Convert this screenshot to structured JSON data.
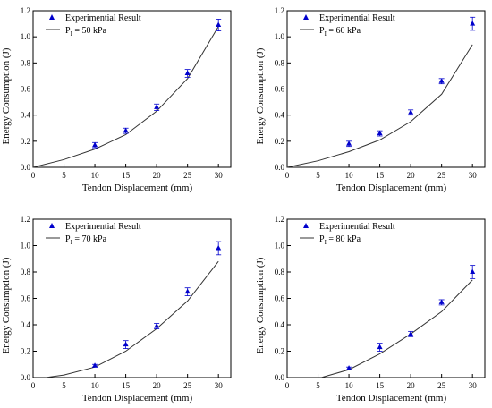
{
  "chart_data": [
    {
      "type": "scatter",
      "xlabel": "Tendon Displacement (mm)",
      "ylabel": "Energy Consumption (J)",
      "xlim": [
        0,
        32
      ],
      "ylim": [
        0,
        1.2
      ],
      "xticks": [
        0,
        5,
        10,
        15,
        20,
        25,
        30
      ],
      "yticks": [
        0.0,
        0.2,
        0.4,
        0.6,
        0.8,
        1.0,
        1.2
      ],
      "grid": false,
      "legend_position": "top-left",
      "series": [
        {
          "name": "Experimential Result",
          "kind": "points",
          "color": "#0000cc",
          "x": [
            10,
            15,
            20,
            25,
            30
          ],
          "y": [
            0.17,
            0.28,
            0.46,
            0.72,
            1.09
          ],
          "err": [
            0.02,
            0.02,
            0.025,
            0.03,
            0.045
          ]
        },
        {
          "name": "P_I = 50 kPa",
          "name_main": "P",
          "name_sub": "I",
          "name_rest": " = 50 kPa",
          "kind": "line",
          "color": "#333333",
          "x": [
            0,
            5,
            10,
            15,
            20,
            25,
            30
          ],
          "y": [
            0.0,
            0.06,
            0.14,
            0.25,
            0.43,
            0.68,
            1.08
          ]
        }
      ]
    },
    {
      "type": "scatter",
      "xlabel": "Tendon Displacement (mm)",
      "ylabel": "Energy Consumption (J)",
      "xlim": [
        0,
        32
      ],
      "ylim": [
        0,
        1.2
      ],
      "xticks": [
        0,
        5,
        10,
        15,
        20,
        25,
        30
      ],
      "yticks": [
        0.0,
        0.2,
        0.4,
        0.6,
        0.8,
        1.0,
        1.2
      ],
      "grid": false,
      "legend_position": "top-left",
      "series": [
        {
          "name": "Experimential Result",
          "kind": "points",
          "color": "#0000cc",
          "x": [
            10,
            15,
            20,
            25,
            30
          ],
          "y": [
            0.18,
            0.26,
            0.42,
            0.66,
            1.1
          ],
          "err": [
            0.02,
            0.02,
            0.02,
            0.02,
            0.05
          ]
        },
        {
          "name": "P_I = 60 kPa",
          "name_main": "P",
          "name_sub": "I",
          "name_rest": " = 60 kPa",
          "kind": "line",
          "color": "#333333",
          "x": [
            0,
            5,
            10,
            15,
            20,
            25,
            30
          ],
          "y": [
            0.0,
            0.05,
            0.12,
            0.21,
            0.35,
            0.56,
            0.94
          ]
        }
      ]
    },
    {
      "type": "scatter",
      "xlabel": "Tendon Displacement (mm)",
      "ylabel": "Energy Consumption (J)",
      "xlim": [
        0,
        32
      ],
      "ylim": [
        0,
        1.2
      ],
      "xticks": [
        0,
        5,
        10,
        15,
        20,
        25,
        30
      ],
      "yticks": [
        0.0,
        0.2,
        0.4,
        0.6,
        0.8,
        1.0,
        1.2
      ],
      "grid": false,
      "legend_position": "top-left",
      "series": [
        {
          "name": "Experimential Result",
          "kind": "points",
          "color": "#0000cc",
          "x": [
            10,
            15,
            20,
            25,
            30
          ],
          "y": [
            0.09,
            0.25,
            0.39,
            0.65,
            0.98
          ],
          "err": [
            0.01,
            0.03,
            0.02,
            0.03,
            0.05
          ]
        },
        {
          "name": "P_I = 70 kPa",
          "name_main": "P",
          "name_sub": "I",
          "name_rest": " = 70 kPa",
          "kind": "line",
          "color": "#333333",
          "x": [
            2,
            5,
            10,
            15,
            20,
            25,
            30
          ],
          "y": [
            0.0,
            0.02,
            0.08,
            0.2,
            0.37,
            0.58,
            0.88
          ]
        }
      ]
    },
    {
      "type": "scatter",
      "xlabel": "Tendon Displacement (mm)",
      "ylabel": "Energy Consumption (J)",
      "xlim": [
        0,
        32
      ],
      "ylim": [
        0,
        1.2
      ],
      "xticks": [
        0,
        5,
        10,
        15,
        20,
        25,
        30
      ],
      "yticks": [
        0.0,
        0.2,
        0.4,
        0.6,
        0.8,
        1.0,
        1.2
      ],
      "grid": false,
      "legend_position": "top-left",
      "series": [
        {
          "name": "Experimential Result",
          "kind": "points",
          "color": "#0000cc",
          "x": [
            10,
            15,
            20,
            25,
            30
          ],
          "y": [
            0.07,
            0.23,
            0.33,
            0.57,
            0.8
          ],
          "err": [
            0.01,
            0.03,
            0.02,
            0.02,
            0.05
          ]
        },
        {
          "name": "P_I = 80 kPa",
          "name_main": "P",
          "name_sub": "I",
          "name_rest": " = 80 kPa",
          "kind": "line",
          "color": "#333333",
          "x": [
            5.5,
            10,
            15,
            20,
            25,
            30
          ],
          "y": [
            0.0,
            0.06,
            0.18,
            0.33,
            0.5,
            0.74
          ]
        }
      ]
    }
  ]
}
